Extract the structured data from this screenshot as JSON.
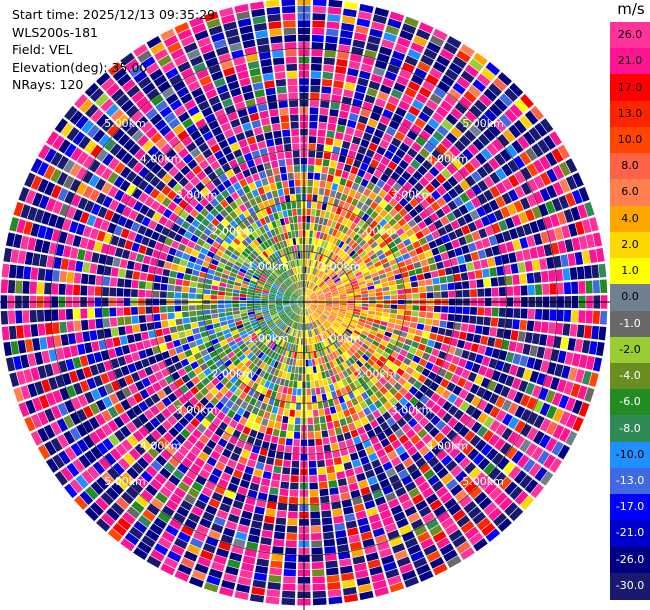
{
  "header": {
    "start_time": "Start time: 2025/12/13 09:35:29",
    "instrument": "WLS200s-181",
    "field": "Field: VEL",
    "elevation": "Elevation(deg): 35.00",
    "nrays": "NRays: 120"
  },
  "colorbar": {
    "unit": "m/s",
    "ticks": [
      "26.0",
      "21.0",
      "17.0",
      "13.0",
      "10.0",
      "8.0",
      "6.0",
      "4.0",
      "2.0",
      "1.0",
      "0.0",
      "-1.0",
      "-2.0",
      "-4.0",
      "-6.0",
      "-8.0",
      "-10.0",
      "-13.0",
      "-17.0",
      "-21.0",
      "-26.0",
      "-30.0"
    ],
    "colors": [
      "#ff3399",
      "#ff1493",
      "#ff0000",
      "#ff2400",
      "#ff4500",
      "#ff6347",
      "#ff7f50",
      "#ffa500",
      "#ffd700",
      "#ffff00",
      "#708090",
      "#696969",
      "#9acd32",
      "#6b8e23",
      "#228b22",
      "#2e8b57",
      "#1e90ff",
      "#4169e1",
      "#0000ff",
      "#0000cd",
      "#000080",
      "#191970"
    ]
  },
  "chart_data": {
    "type": "heatmap",
    "projection": "polar",
    "field": "VEL",
    "unit": "m/s",
    "nrays": 120,
    "elevation_deg": 35.0,
    "range_ring_labels": [
      "1.00km",
      "2.00km",
      "3.00km",
      "4.00km",
      "5.00km"
    ],
    "range_rings_km": [
      1,
      2,
      3,
      4,
      5
    ],
    "max_range_km": 6.0,
    "colormap_bounds": [
      -30,
      -26,
      -21,
      -17,
      -13,
      -10,
      -8,
      -6,
      -4,
      -2,
      -1,
      0,
      1,
      2,
      4,
      6,
      8,
      10,
      13,
      17,
      21,
      26,
      30
    ],
    "pattern_summary": {
      "near_field_west": "green to blue (negative velocities)",
      "near_field_east": "yellow to red (positive velocities)",
      "far_field": "noisy mixture spanning full range"
    }
  }
}
